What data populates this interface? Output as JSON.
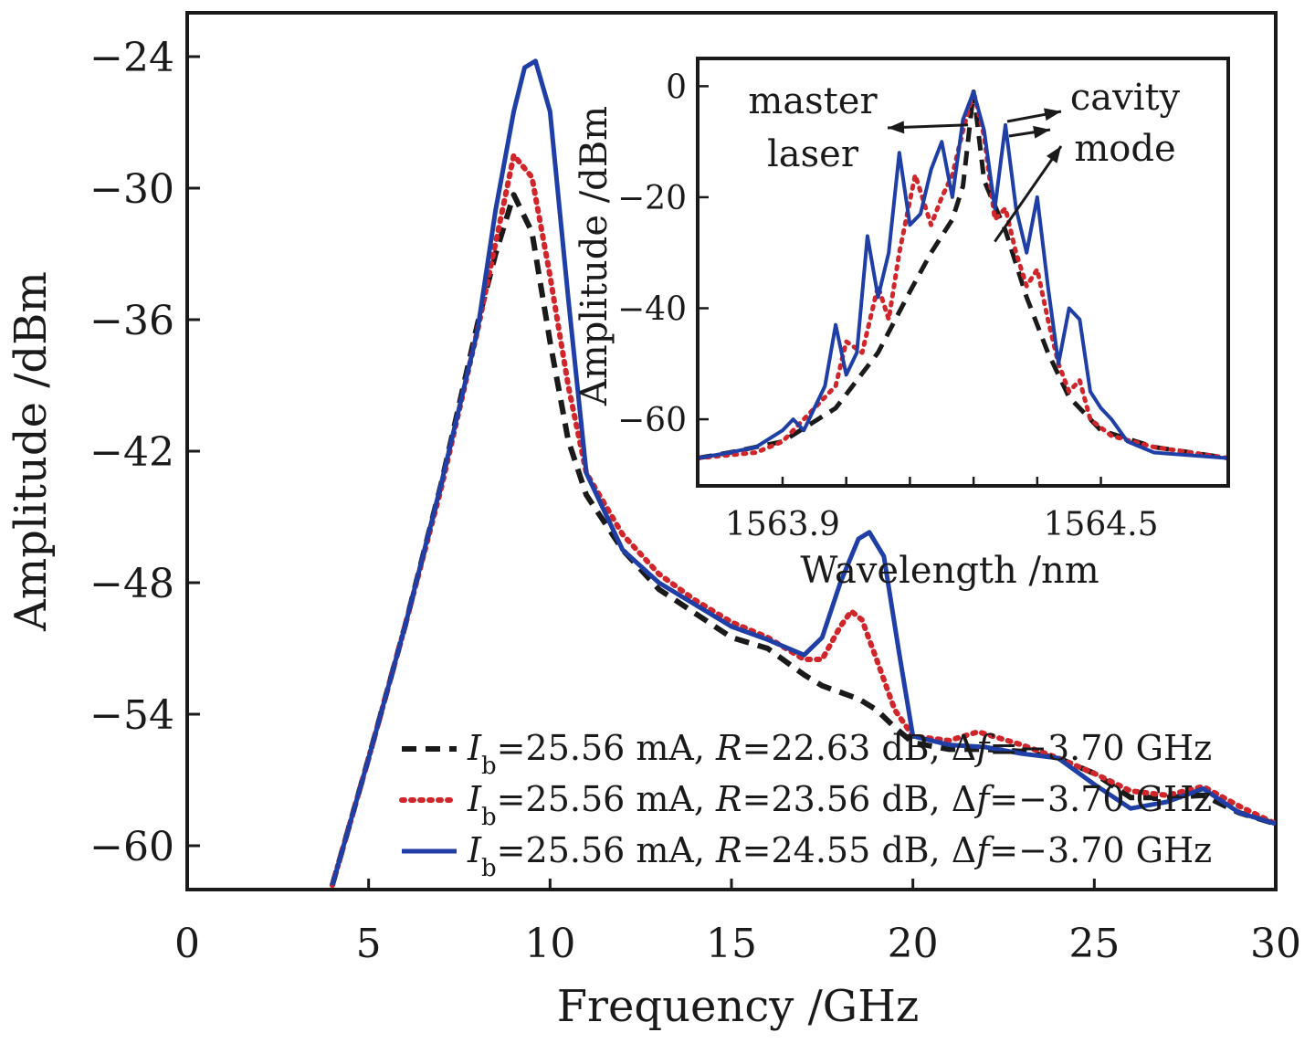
{
  "colors": {
    "axis": "#1a1a1a",
    "series_dashed": "#1a1a1a",
    "series_dotted": "#d0262b",
    "series_solid": "#1f3fa6"
  },
  "chart_data": [
    {
      "type": "line",
      "xlabel": "Frequency /GHz",
      "ylabel": "Amplitude /dBm",
      "xlim": [
        0,
        30
      ],
      "ylim": [
        -62,
        -22
      ],
      "xticks": [
        "0",
        "5",
        "10",
        "15",
        "20",
        "25",
        "30"
      ],
      "yticks": [
        "−24",
        "−30",
        "−36",
        "−42",
        "−48",
        "−54",
        "−60"
      ],
      "xtick_values": [
        0,
        5,
        10,
        15,
        20,
        25,
        30
      ],
      "ytick_values": [
        -24,
        -30,
        -36,
        -42,
        -48,
        -54,
        -60
      ],
      "grid": false,
      "legend_position": "bottom-right",
      "series": [
        {
          "style": "dashed",
          "legend": {
            "I": "I",
            "sub": "b",
            "text1": "=25.56 mA, ",
            "R": "R",
            "text2": "=22.63 dB, Δ",
            "f": "f",
            "text3": "=−3.70 GHz"
          },
          "x": [
            4.0,
            5.0,
            6.0,
            7.0,
            8.0,
            8.5,
            9.0,
            9.5,
            10.0,
            10.5,
            11.0,
            12.0,
            13.0,
            14.0,
            15.0,
            16.0,
            17.0,
            17.5,
            18.0,
            18.5,
            19.0,
            19.5,
            20.0,
            21.0,
            22.0,
            23.0,
            24.0,
            25.0,
            26.0,
            27.0,
            28.0,
            29.0,
            30.0
          ],
          "y": [
            -61.8,
            -56.0,
            -50.0,
            -43.5,
            -36.2,
            -33.0,
            -30.3,
            -32.0,
            -37.0,
            -41.5,
            -44.0,
            -46.5,
            -48.3,
            -49.4,
            -50.5,
            -51.0,
            -52.2,
            -52.7,
            -53.0,
            -53.3,
            -53.8,
            -54.6,
            -55.3,
            -55.6,
            -55.6,
            -55.7,
            -56.0,
            -56.7,
            -57.8,
            -57.8,
            -57.7,
            -58.5,
            -59.0
          ]
        },
        {
          "style": "dotted",
          "legend": {
            "I": "I",
            "sub": "b",
            "text1": "=25.56 mA, ",
            "R": "R",
            "text2": "=23.56 dB, Δ",
            "f": "f",
            "text3": "=−3.70 GHz"
          },
          "x": [
            4.0,
            5.0,
            6.0,
            7.0,
            8.0,
            8.5,
            9.0,
            9.5,
            10.0,
            10.5,
            11.0,
            12.0,
            13.0,
            14.0,
            15.0,
            16.0,
            17.0,
            17.5,
            18.0,
            18.3,
            18.6,
            19.0,
            19.5,
            20.0,
            21.0,
            21.8,
            23.0,
            24.0,
            25.0,
            26.0,
            27.0,
            28.0,
            29.0,
            30.0
          ],
          "y": [
            -61.8,
            -56.0,
            -50.0,
            -43.7,
            -36.5,
            -32.5,
            -28.5,
            -29.5,
            -34.0,
            -39.0,
            -43.0,
            -45.8,
            -47.6,
            -48.8,
            -49.8,
            -50.5,
            -51.5,
            -51.5,
            -50.0,
            -49.3,
            -49.7,
            -51.5,
            -53.8,
            -55.0,
            -55.2,
            -54.8,
            -55.4,
            -56.0,
            -56.7,
            -57.5,
            -57.7,
            -57.3,
            -58.2,
            -59.0
          ]
        },
        {
          "style": "solid",
          "legend": {
            "I": "I",
            "sub": "b",
            "text1": "=25.56 mA, ",
            "R": "R",
            "text2": "=24.55 dB, Δ",
            "f": "f",
            "text3": "=−3.70 GHz"
          },
          "x": [
            4.0,
            5.0,
            6.0,
            7.0,
            8.0,
            8.5,
            9.0,
            9.3,
            9.6,
            10.0,
            10.5,
            11.0,
            12.0,
            13.0,
            14.0,
            15.0,
            16.0,
            17.0,
            17.5,
            18.0,
            18.5,
            18.8,
            19.2,
            19.6,
            20.0,
            21.0,
            22.0,
            23.0,
            24.0,
            25.0,
            26.0,
            27.0,
            28.0,
            29.0,
            30.0
          ],
          "y": [
            -61.8,
            -56.0,
            -50.0,
            -43.5,
            -36.5,
            -31.0,
            -26.5,
            -24.5,
            -24.2,
            -26.5,
            -35.0,
            -43.0,
            -46.5,
            -48.0,
            -49.0,
            -50.0,
            -50.6,
            -51.3,
            -50.5,
            -48.0,
            -46.0,
            -45.7,
            -46.8,
            -51.0,
            -55.0,
            -55.4,
            -55.5,
            -55.8,
            -56.0,
            -57.2,
            -58.3,
            -58.0,
            -57.4,
            -58.5,
            -59.0
          ]
        }
      ]
    },
    {
      "type": "line",
      "inset": true,
      "xlabel": "Wavelength /nm",
      "ylabel": "Amplitude /dBm",
      "xlim": [
        1563.74,
        1564.74
      ],
      "ylim": [
        -72,
        5
      ],
      "xticks": [
        "1563.9",
        "1564.5"
      ],
      "yticks": [
        "0",
        "−20",
        "−40",
        "−60"
      ],
      "xtick_values": [
        1563.9,
        1564.5
      ],
      "ytick_values": [
        0,
        -20,
        -40,
        -60
      ],
      "minor_xticks": [
        1563.9,
        1564.02,
        1564.14,
        1564.26,
        1564.38,
        1564.5
      ],
      "annotations": {
        "master": "master",
        "laser": "laser",
        "cavity": "cavity",
        "mode": "mode"
      },
      "series": [
        {
          "style": "dashed",
          "x": [
            1563.74,
            1563.8,
            1563.9,
            1564.0,
            1564.08,
            1564.14,
            1564.18,
            1564.22,
            1564.24,
            1564.26,
            1564.28,
            1564.32,
            1564.36,
            1564.4,
            1564.44,
            1564.5,
            1564.6,
            1564.74
          ],
          "y": [
            -67,
            -66,
            -64,
            -58,
            -48,
            -37,
            -30,
            -24,
            -18,
            -1,
            -17,
            -26,
            -38,
            -48,
            -56,
            -62,
            -65,
            -67
          ]
        },
        {
          "style": "dotted",
          "x": [
            1563.74,
            1563.85,
            1563.9,
            1563.96,
            1564.0,
            1564.02,
            1564.05,
            1564.08,
            1564.1,
            1564.12,
            1564.15,
            1564.18,
            1564.2,
            1564.22,
            1564.24,
            1564.26,
            1564.28,
            1564.3,
            1564.32,
            1564.34,
            1564.36,
            1564.38,
            1564.4,
            1564.42,
            1564.44,
            1564.46,
            1564.48,
            1564.52,
            1564.6,
            1564.74
          ],
          "y": [
            -67,
            -66,
            -64,
            -58,
            -54,
            -46,
            -48,
            -36,
            -42,
            -30,
            -16,
            -25,
            -20,
            -16,
            -8,
            -1,
            -9,
            -24,
            -22,
            -30,
            -36,
            -33,
            -42,
            -50,
            -55,
            -53,
            -60,
            -63,
            -65,
            -67
          ]
        },
        {
          "style": "solid",
          "x": [
            1563.74,
            1563.8,
            1563.85,
            1563.9,
            1563.92,
            1563.94,
            1563.96,
            1563.98,
            1564.0,
            1564.02,
            1564.04,
            1564.06,
            1564.08,
            1564.1,
            1564.12,
            1564.14,
            1564.16,
            1564.18,
            1564.2,
            1564.22,
            1564.24,
            1564.26,
            1564.28,
            1564.3,
            1564.32,
            1564.34,
            1564.36,
            1564.38,
            1564.4,
            1564.42,
            1564.44,
            1564.46,
            1564.48,
            1564.5,
            1564.52,
            1564.55,
            1564.6,
            1564.74
          ],
          "y": [
            -67,
            -66,
            -65,
            -62,
            -60,
            -62,
            -58,
            -54,
            -43,
            -52,
            -48,
            -27,
            -38,
            -30,
            -12,
            -25,
            -23,
            -15,
            -10,
            -20,
            -6,
            -1,
            -8,
            -22,
            -7,
            -22,
            -30,
            -20,
            -36,
            -50,
            -40,
            -42,
            -55,
            -58,
            -60,
            -64,
            -66,
            -67
          ]
        }
      ]
    }
  ]
}
